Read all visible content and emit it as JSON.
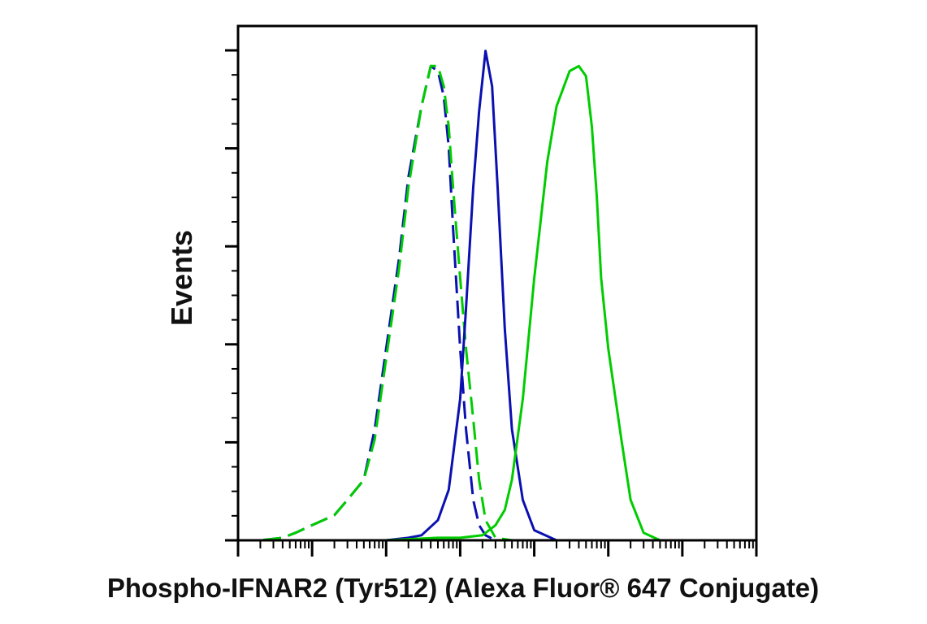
{
  "chart_data": {
    "type": "line",
    "title": "",
    "xlabel": "Phospho-IFNAR2 (Tyr512) (Alexa Fluor® 647 Conjugate)",
    "ylabel": "Events",
    "x_scale": "log",
    "xlim": [
      1,
      10000000
    ],
    "ylim": [
      0,
      100
    ],
    "grid": false,
    "legend": "none",
    "series": [
      {
        "color": "#0b10b0",
        "dash": true,
        "x": [
          1,
          2,
          4,
          6,
          10,
          20,
          30,
          50,
          70,
          100,
          150,
          200,
          300,
          400,
          500,
          600,
          700,
          800,
          1000,
          1200,
          1500,
          1800,
          2200,
          3000,
          5000,
          10000000
        ],
        "y": [
          0,
          0,
          0.5,
          1.5,
          3,
          5,
          8,
          12,
          22,
          38,
          56,
          72,
          86,
          94,
          93,
          88,
          78,
          62,
          38,
          22,
          8,
          3,
          1,
          0,
          0,
          0
        ]
      },
      {
        "color": "#00cc00",
        "dash": true,
        "x": [
          1,
          2,
          4,
          6,
          10,
          20,
          30,
          50,
          70,
          100,
          150,
          200,
          300,
          400,
          500,
          600,
          700,
          800,
          1000,
          1200,
          1500,
          1800,
          2200,
          3000,
          5000,
          10000000
        ],
        "y": [
          0,
          0,
          0.5,
          1.5,
          3,
          5,
          8,
          12,
          20,
          36,
          54,
          70,
          86,
          94,
          94,
          90,
          82,
          70,
          52,
          38,
          24,
          12,
          4,
          0.5,
          0,
          0
        ]
      },
      {
        "color": "#0b10b0",
        "dash": false,
        "x": [
          1,
          100,
          200,
          300,
          500,
          700,
          1000,
          1200,
          1500,
          1800,
          2200,
          2700,
          3200,
          4000,
          5000,
          7000,
          10000,
          20000,
          10000000
        ],
        "y": [
          0,
          0,
          0.5,
          1,
          4,
          10,
          28,
          46,
          70,
          85,
          97,
          90,
          70,
          42,
          22,
          8,
          2,
          0,
          0
        ]
      },
      {
        "color": "#00cc00",
        "dash": false,
        "x": [
          1,
          100,
          500,
          1000,
          2000,
          3000,
          4000,
          5000,
          7000,
          10000,
          15000,
          20000,
          30000,
          40000,
          50000,
          60000,
          70000,
          80000,
          100000,
          150000,
          200000,
          300000,
          500000,
          1000000,
          10000000
        ],
        "y": [
          0,
          0,
          0.5,
          0.5,
          1,
          3,
          6,
          12,
          28,
          52,
          75,
          86,
          93,
          94,
          92,
          82,
          68,
          52,
          38,
          20,
          8,
          1.5,
          0,
          0,
          0
        ]
      }
    ]
  }
}
